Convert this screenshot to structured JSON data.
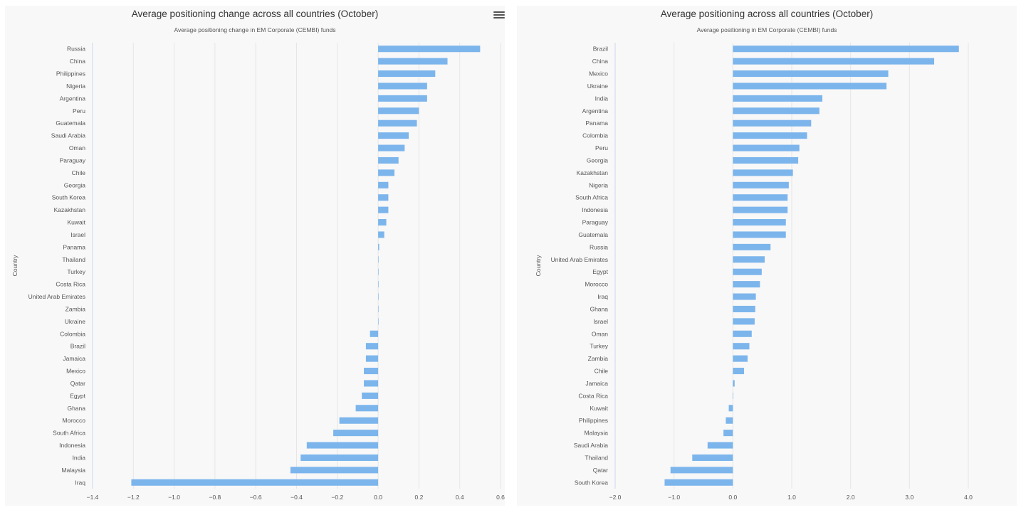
{
  "menu": {
    "icon": "hamburger-menu-icon"
  },
  "chart_data": [
    {
      "type": "bar",
      "orientation": "horizontal",
      "title": "Average positioning change across all countries (October)",
      "subtitle": "Average positioning change in EM Corporate (CEMBI) funds",
      "xlabel": "%",
      "ylabel": "Country",
      "xlim": [
        -1.4,
        0.6
      ],
      "xticks": [
        -1.4,
        -1.2,
        -1.0,
        -0.8,
        -0.6,
        -0.4,
        -0.2,
        0.0,
        0.2,
        0.4,
        0.6
      ],
      "xtick_labels": [
        "−1.4",
        "−1.2",
        "−1.0",
        "−0.8",
        "−0.6",
        "−0.4",
        "−0.2",
        "0.0",
        "0.2",
        "0.4",
        "0.6"
      ],
      "grid": true,
      "bar_color": "#7cb5ec",
      "categories": [
        "Russia",
        "China",
        "Philippines",
        "Nigeria",
        "Argentina",
        "Peru",
        "Guatemala",
        "Saudi Arabia",
        "Oman",
        "Paraguay",
        "Chile",
        "Georgia",
        "South Korea",
        "Kazakhstan",
        "Kuwait",
        "Israel",
        "Panama",
        "Thailand",
        "Turkey",
        "Costa Rica",
        "United Arab Emirates",
        "Zambia",
        "Ukraine",
        "Colombia",
        "Brazil",
        "Jamaica",
        "Mexico",
        "Qatar",
        "Egypt",
        "Ghana",
        "Morocco",
        "South Africa",
        "Indonesia",
        "India",
        "Malaysia",
        "Iraq"
      ],
      "values": [
        0.5,
        0.34,
        0.28,
        0.24,
        0.24,
        0.2,
        0.19,
        0.15,
        0.13,
        0.1,
        0.08,
        0.05,
        0.05,
        0.05,
        0.04,
        0.03,
        0.005,
        0.0,
        0.0,
        0.0,
        0.0,
        0.0,
        0.0,
        -0.04,
        -0.06,
        -0.06,
        -0.07,
        -0.07,
        -0.08,
        -0.11,
        -0.19,
        -0.22,
        -0.35,
        -0.38,
        -0.43,
        -1.21
      ]
    },
    {
      "type": "bar",
      "orientation": "horizontal",
      "title": "Average positioning across all countries (October)",
      "subtitle": "Average positioning in EM Corporate (CEMBI) funds",
      "xlabel": "%",
      "ylabel": "Country",
      "xlim": [
        -2.0,
        4.0
      ],
      "xticks": [
        -2.0,
        -1.0,
        0.0,
        1.0,
        2.0,
        3.0,
        4.0
      ],
      "xtick_labels": [
        "−2.0",
        "−1.0",
        "0.0",
        "1.0",
        "2.0",
        "3.0",
        "4.0"
      ],
      "grid": true,
      "bar_color": "#7cb5ec",
      "categories": [
        "Brazil",
        "China",
        "Mexico",
        "Ukraine",
        "India",
        "Argentina",
        "Panama",
        "Colombia",
        "Peru",
        "Georgia",
        "Kazakhstan",
        "Nigeria",
        "South Africa",
        "Indonesia",
        "Paraguay",
        "Guatemala",
        "Russia",
        "United Arab Emirates",
        "Egypt",
        "Morocco",
        "Iraq",
        "Ghana",
        "Israel",
        "Oman",
        "Turkey",
        "Zambia",
        "Chile",
        "Jamaica",
        "Costa Rica",
        "Kuwait",
        "Philippines",
        "Malaysia",
        "Saudi Arabia",
        "Thailand",
        "Qatar",
        "South Korea"
      ],
      "values": [
        3.84,
        3.42,
        2.64,
        2.61,
        1.52,
        1.47,
        1.33,
        1.26,
        1.13,
        1.11,
        1.02,
        0.95,
        0.93,
        0.93,
        0.9,
        0.9,
        0.64,
        0.54,
        0.49,
        0.46,
        0.39,
        0.38,
        0.37,
        0.32,
        0.28,
        0.25,
        0.19,
        0.03,
        0.0,
        -0.07,
        -0.12,
        -0.16,
        -0.43,
        -0.69,
        -1.06,
        -1.16
      ]
    }
  ]
}
